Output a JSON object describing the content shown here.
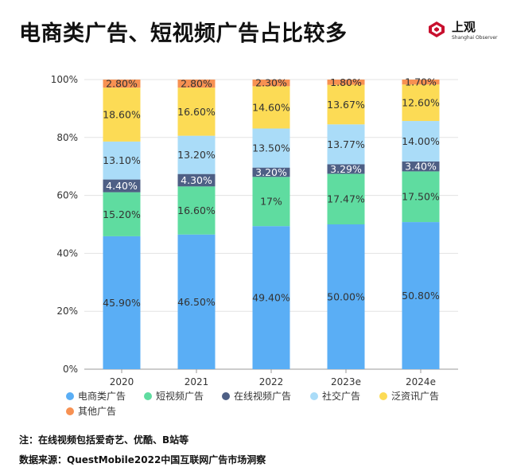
{
  "header": {
    "title": "电商类广告、短视频广告占比较多",
    "brand_name": "上观",
    "brand_en": "Shanghai Observer"
  },
  "footer": {
    "note": "注：在线视频包括爱奇艺、优酷、B站等",
    "source": "数据来源：QuestMobile2022中国互联网广告市场洞察"
  },
  "chart_data": {
    "type": "bar",
    "stacked": true,
    "categories": [
      "2020",
      "2021",
      "2022",
      "2023e",
      "2024e"
    ],
    "ylim": [
      0,
      100
    ],
    "yticks": [
      "0%",
      "20%",
      "40%",
      "60%",
      "80%",
      "100%"
    ],
    "grid": true,
    "legend_position": "bottom",
    "series": [
      {
        "name": "电商类广告",
        "color": "#5aaef5",
        "values": [
          45.9,
          46.5,
          49.4,
          50.0,
          50.8
        ],
        "labels": [
          "45.90%",
          "46.50%",
          "49.40%",
          "50.00%",
          "50.80%"
        ]
      },
      {
        "name": "短视频广告",
        "color": "#5fdca0",
        "values": [
          15.2,
          16.6,
          17.0,
          17.47,
          17.5
        ],
        "labels": [
          "15.20%",
          "16.60%",
          "17%",
          "17.47%",
          "17.50%"
        ]
      },
      {
        "name": "在线视频广告",
        "color": "#4e5f85",
        "values": [
          4.4,
          4.3,
          3.2,
          3.29,
          3.4
        ],
        "labels": [
          "4.40%",
          "4.30%",
          "3.20%",
          "3.29%",
          "3.40%"
        ]
      },
      {
        "name": "社交广告",
        "color": "#aadcf8",
        "values": [
          13.1,
          13.2,
          13.5,
          13.77,
          14.0
        ],
        "labels": [
          "13.10%",
          "13.20%",
          "13.50%",
          "13.77%",
          "14.00%"
        ]
      },
      {
        "name": "泛资讯广告",
        "color": "#fcdb55",
        "values": [
          18.6,
          16.6,
          14.6,
          13.67,
          12.6
        ],
        "labels": [
          "18.60%",
          "16.60%",
          "14.60%",
          "13.67%",
          "12.60%"
        ]
      },
      {
        "name": "其他广告",
        "color": "#f79152",
        "values": [
          2.8,
          2.8,
          2.3,
          1.8,
          1.7
        ],
        "labels": [
          "2.80%",
          "2.80%",
          "2.30%",
          "1.80%",
          "1.70%"
        ]
      }
    ]
  }
}
